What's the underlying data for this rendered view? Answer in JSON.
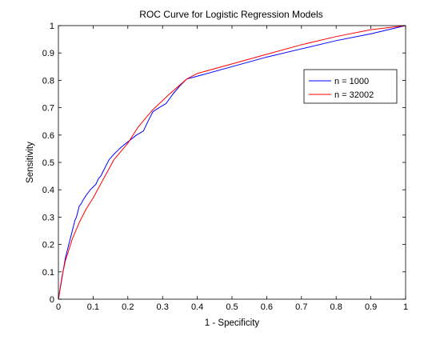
{
  "chart_data": {
    "type": "line",
    "title": "ROC Curve for Logistic Regression Models",
    "xlabel": "1 - Specificity",
    "ylabel": "Sensitivity",
    "xlim": [
      0,
      1
    ],
    "ylim": [
      0,
      1
    ],
    "x_ticks": [
      0,
      0.1,
      0.2,
      0.3,
      0.4,
      0.5,
      0.6,
      0.7,
      0.8,
      0.9,
      1
    ],
    "x_tick_labels": [
      "0",
      "0.1",
      "0.2",
      "0.3",
      "0.4",
      "0.5",
      "0.6",
      "0.7",
      "0.8",
      "0.9",
      "1"
    ],
    "y_ticks": [
      0,
      0.1,
      0.2,
      0.3,
      0.4,
      0.5,
      0.6,
      0.7,
      0.8,
      0.9,
      1
    ],
    "y_tick_labels": [
      "0",
      "0.1",
      "0.2",
      "0.3",
      "0.4",
      "0.5",
      "0.6",
      "0.7",
      "0.8",
      "0.9",
      "1"
    ],
    "grid": false,
    "legend_position": "top-right",
    "series": [
      {
        "name": "n = 1000",
        "color": "#0000ff",
        "x": [
          0,
          0.004,
          0.008,
          0.012,
          0.016,
          0.02,
          0.024,
          0.028,
          0.032,
          0.036,
          0.04,
          0.044,
          0.048,
          0.052,
          0.056,
          0.06,
          0.063,
          0.066,
          0.07,
          0.075,
          0.08,
          0.086,
          0.092,
          0.1,
          0.108,
          0.115,
          0.122,
          0.13,
          0.138,
          0.146,
          0.153,
          0.16,
          0.168,
          0.176,
          0.185,
          0.195,
          0.21,
          0.225,
          0.245,
          0.258,
          0.272,
          0.29,
          0.31,
          0.33,
          0.35,
          0.37,
          0.385,
          0.4,
          0.5,
          0.6,
          0.7,
          0.8,
          0.9,
          1
        ],
        "y": [
          0,
          0.03,
          0.06,
          0.09,
          0.12,
          0.15,
          0.17,
          0.19,
          0.21,
          0.23,
          0.25,
          0.27,
          0.29,
          0.3,
          0.32,
          0.34,
          0.345,
          0.35,
          0.36,
          0.37,
          0.38,
          0.39,
          0.4,
          0.41,
          0.42,
          0.44,
          0.45,
          0.47,
          0.49,
          0.51,
          0.52,
          0.53,
          0.54,
          0.55,
          0.56,
          0.57,
          0.585,
          0.6,
          0.615,
          0.65,
          0.685,
          0.7,
          0.715,
          0.75,
          0.78,
          0.805,
          0.81,
          0.815,
          0.85,
          0.885,
          0.915,
          0.945,
          0.97,
          1
        ]
      },
      {
        "name": "n = 32002",
        "color": "#ff0000",
        "x": [
          0,
          0.01,
          0.02,
          0.04,
          0.06,
          0.08,
          0.1,
          0.13,
          0.16,
          0.2,
          0.23,
          0.27,
          0.32,
          0.37,
          0.4,
          0.5,
          0.6,
          0.7,
          0.8,
          0.9,
          1
        ],
        "y": [
          0,
          0.08,
          0.14,
          0.22,
          0.28,
          0.33,
          0.37,
          0.44,
          0.51,
          0.57,
          0.63,
          0.69,
          0.75,
          0.805,
          0.825,
          0.86,
          0.895,
          0.93,
          0.96,
          0.985,
          1
        ]
      }
    ]
  }
}
